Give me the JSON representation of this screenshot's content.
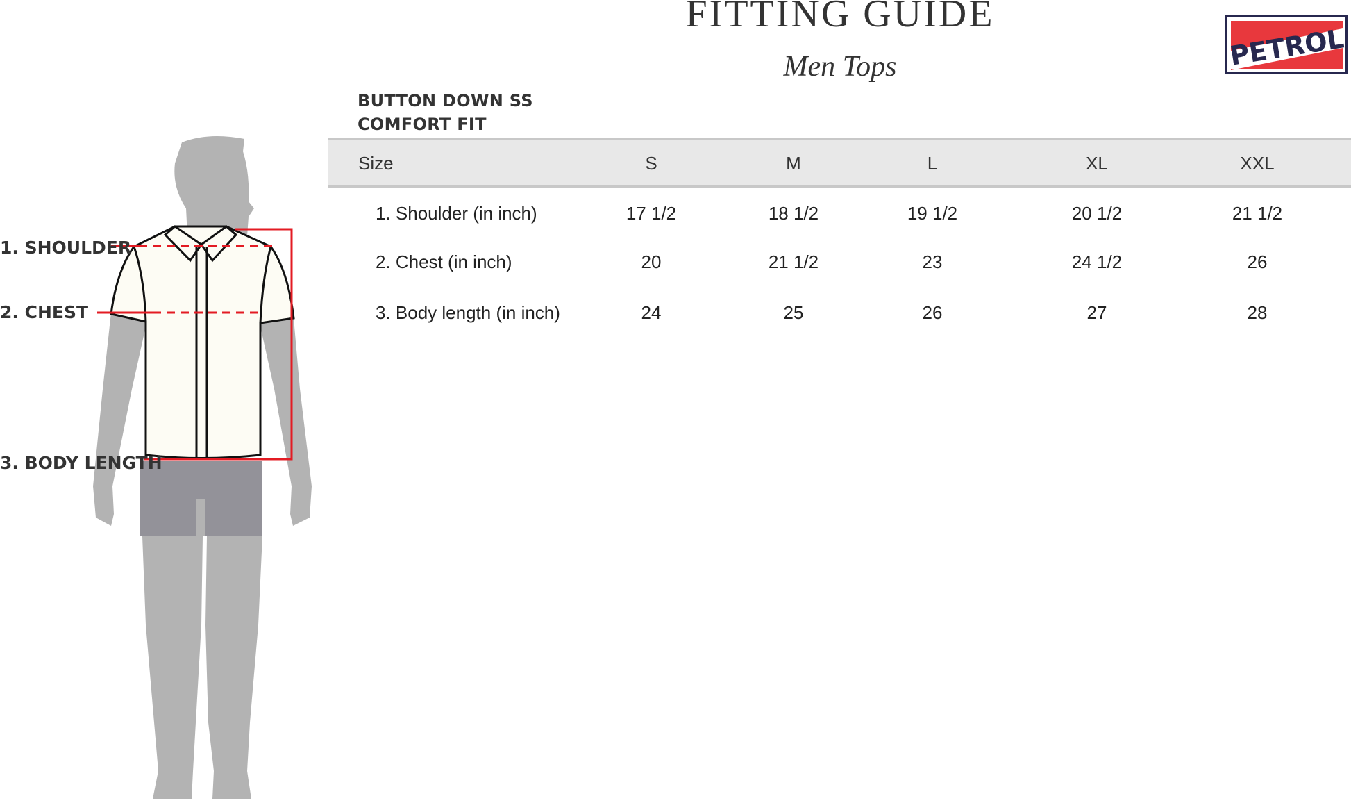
{
  "header": {
    "title": "FITTING GUIDE",
    "subtitle": "Men Tops",
    "brand_logo": "PETROL"
  },
  "product": {
    "line1": "BUTTON DOWN SS",
    "line2": "COMFORT FIT"
  },
  "table": {
    "size_label": "Size",
    "sizes": [
      "S",
      "M",
      "L",
      "XL",
      "XXL"
    ],
    "rows": [
      {
        "label": "1. Shoulder (in inch)",
        "values": [
          "17 1/2",
          "18 1/2",
          "19 1/2",
          "20 1/2",
          "21 1/2"
        ]
      },
      {
        "label": "2. Chest (in inch)",
        "values": [
          "20",
          "21 1/2",
          "23",
          "24 1/2",
          "26"
        ]
      },
      {
        "label": "3. Body length (in inch)",
        "values": [
          "24",
          "25",
          "26",
          "27",
          "28"
        ]
      }
    ]
  },
  "figure": {
    "labels": [
      "1. SHOULDER",
      "2. CHEST",
      "3. BODY LENGTH"
    ]
  },
  "colors": {
    "measure_line": "#e31b23",
    "logo_red": "#e8383d",
    "logo_navy": "#27284f",
    "silhouette": "#b3b3b3",
    "shorts": "#939299",
    "header_band": "#e8e8e8"
  }
}
